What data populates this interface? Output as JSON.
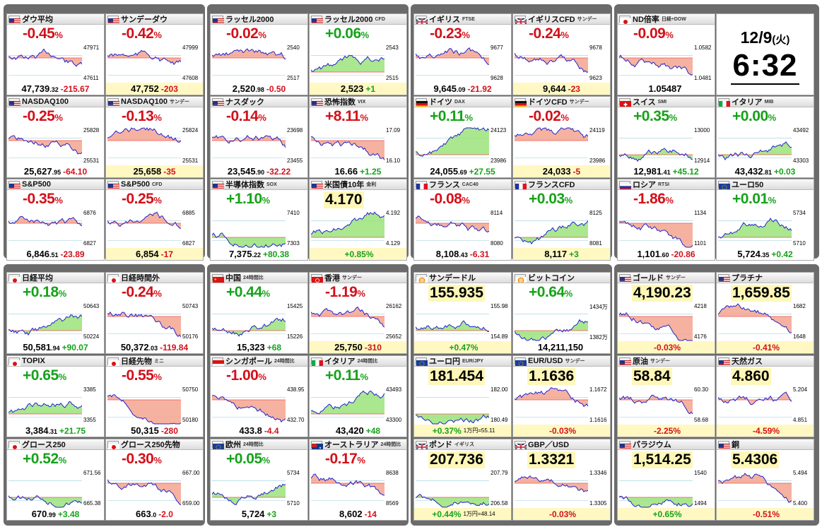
{
  "colors": {
    "up": "#16a21a",
    "down": "#d3101a",
    "line": "#2222cc",
    "fill_up": "#9be37a",
    "fill_down": "#f5a58f"
  },
  "clock": {
    "date": "12/9",
    "weekday": "(火)",
    "time": "6:32"
  },
  "cards": [
    {
      "name": "ダウ平均",
      "sub": "",
      "flag": "us",
      "change": "-0.45",
      "dir": "dn",
      "labels": [
        "47971",
        "47611"
      ],
      "foot": {
        "price": "47,739",
        "dec": ".32",
        "delta": "-215.67",
        "yellow": false
      }
    },
    {
      "name": "サンデーダウ",
      "sub": "",
      "flag": "us",
      "change": "-0.42",
      "dir": "dn",
      "labels": [
        "47999",
        "47608"
      ],
      "foot": {
        "price": "47,752",
        "dec": "",
        "delta": "-203",
        "yellow": true
      }
    },
    {
      "name": "ラッセル2000",
      "sub": "",
      "flag": "us",
      "change": "-0.02",
      "dir": "dn",
      "labels": [
        "2540",
        "2517"
      ],
      "foot": {
        "price": "2,520",
        "dec": ".98",
        "delta": "-0.50",
        "yellow": false
      }
    },
    {
      "name": "ラッセル2000",
      "sub": "CFD",
      "flag": "us",
      "change": "+0.06",
      "dir": "up",
      "labels": [
        "2543",
        "2515"
      ],
      "foot": {
        "price": "2,523",
        "dec": "",
        "delta": "+1",
        "yellow": true
      }
    },
    {
      "name": "イギリス",
      "sub": "FTSE",
      "flag": "uk",
      "change": "-0.23",
      "dir": "dn",
      "labels": [
        "9677",
        "9628"
      ],
      "foot": {
        "price": "9,645",
        "dec": ".09",
        "delta": "-21.92",
        "yellow": false
      }
    },
    {
      "name": "イギリスCFD",
      "sub": "サンデー",
      "flag": "uk",
      "change": "-0.24",
      "dir": "dn",
      "labels": [
        "9678",
        "9623"
      ],
      "foot": {
        "price": "9,644",
        "dec": "",
        "delta": "-23",
        "yellow": true
      }
    },
    {
      "name": "ND倍率",
      "sub": "日経÷DOW",
      "flag": "jp",
      "change": "-0.09",
      "dir": "dn",
      "labels": [
        "1.0582",
        "1.0481"
      ],
      "foot": {
        "price": "1.05487",
        "dec": "",
        "delta": "",
        "yellow": false
      }
    },
    null,
    {
      "name": "NASDAQ100",
      "sub": "",
      "flag": "us",
      "change": "-0.25",
      "dir": "dn",
      "labels": [
        "25828",
        "25531"
      ],
      "foot": {
        "price": "25,627",
        "dec": ".95",
        "delta": "-64.10",
        "yellow": false
      }
    },
    {
      "name": "NASDAQ100",
      "sub": "サンデー",
      "flag": "us",
      "change": "-0.13",
      "dir": "dn",
      "labels": [
        "25824",
        "25531"
      ],
      "foot": {
        "price": "25,658",
        "dec": "",
        "delta": "-35",
        "yellow": true
      }
    },
    {
      "name": "ナスダック",
      "sub": "",
      "flag": "us",
      "change": "-0.14",
      "dir": "dn",
      "labels": [
        "23698",
        "23455"
      ],
      "foot": {
        "price": "23,545",
        "dec": ".90",
        "delta": "-32.22",
        "yellow": false
      }
    },
    {
      "name": "恐怖指数",
      "sub": "VIX",
      "flag": "us",
      "change": "+8.11",
      "dir": "dn",
      "labels": [
        "17.09",
        "16.10"
      ],
      "foot": {
        "price": "16.66",
        "dec": "",
        "delta": "+1.25",
        "yellow": false
      }
    },
    {
      "name": "ドイツ",
      "sub": "DAX",
      "flag": "de",
      "change": "+0.11",
      "dir": "up",
      "labels": [
        "24123",
        "23986"
      ],
      "foot": {
        "price": "24,055",
        "dec": ".69",
        "delta": "+27.55",
        "yellow": false
      }
    },
    {
      "name": "ドイツCFD",
      "sub": "サンデー",
      "flag": "de",
      "change": "-0.02",
      "dir": "dn",
      "labels": [
        "24119",
        "23986"
      ],
      "foot": {
        "price": "24,033",
        "dec": "",
        "delta": "-5",
        "yellow": true
      }
    },
    {
      "name": "スイス",
      "sub": "SMI",
      "flag": "ch",
      "change": "+0.35",
      "dir": "up",
      "labels": [
        "13000",
        "12914"
      ],
      "foot": {
        "price": "12,981",
        "dec": ".41",
        "delta": "+45.12",
        "yellow": false
      }
    },
    {
      "name": "イタリア",
      "sub": "MIB",
      "flag": "it",
      "change": "+0.00",
      "dir": "up",
      "labels": [
        "43492",
        "43303"
      ],
      "foot": {
        "price": "43,432",
        "dec": ".81",
        "delta": "+0.03",
        "yellow": false
      }
    },
    {
      "name": "S&P500",
      "sub": "",
      "flag": "us",
      "change": "-0.35",
      "dir": "dn",
      "labels": [
        "6876",
        "6827"
      ],
      "foot": {
        "price": "6,846",
        "dec": ".51",
        "delta": "-23.89",
        "yellow": false
      }
    },
    {
      "name": "S&P500",
      "sub": "CFD",
      "flag": "us",
      "change": "-0.25",
      "dir": "dn",
      "labels": [
        "6885",
        "6827"
      ],
      "foot": {
        "price": "6,854",
        "dec": "",
        "delta": "-17",
        "yellow": true
      }
    },
    {
      "name": "半導体指数",
      "sub": "SOX",
      "flag": "us",
      "change": "+1.10",
      "dir": "up",
      "labels": [
        "7410",
        "7303"
      ],
      "foot": {
        "price": "7,375",
        "dec": ".22",
        "delta": "+80.38",
        "yellow": false
      }
    },
    {
      "name": "米国債10年",
      "sub": "金利",
      "flag": "us",
      "change": "4.170",
      "dir": "price",
      "labels": [
        "4.192",
        "4.129"
      ],
      "foot": {
        "price": "",
        "dec": "",
        "delta": "+0.85%",
        "yellow": true
      }
    },
    {
      "name": "フランス",
      "sub": "CAC40",
      "flag": "fr",
      "change": "-0.08",
      "dir": "dn",
      "labels": [
        "8114",
        "8080"
      ],
      "foot": {
        "price": "8,108",
        "dec": ".43",
        "delta": "-6.31",
        "yellow": false
      }
    },
    {
      "name": "フランスCFD",
      "sub": "",
      "flag": "fr",
      "change": "+0.03",
      "dir": "up",
      "labels": [
        "8125",
        "8081"
      ],
      "foot": {
        "price": "8,117",
        "dec": "",
        "delta": "+3",
        "yellow": true
      }
    },
    {
      "name": "ロシア",
      "sub": "RTSI",
      "flag": "ru",
      "change": "-1.86",
      "dir": "dn",
      "labels": [
        "1134",
        "1101"
      ],
      "foot": {
        "price": "1,101",
        "dec": ".60",
        "delta": "-20.86",
        "yellow": false
      }
    },
    {
      "name": "ユーロ50",
      "sub": "",
      "flag": "eu",
      "change": "+0.01",
      "dir": "up",
      "labels": [
        "5734",
        "5710"
      ],
      "foot": {
        "price": "5,724",
        "dec": ".35",
        "delta": "+0.42",
        "yellow": false
      }
    },
    {
      "name": "日経平均",
      "sub": "",
      "flag": "jp",
      "change": "+0.18",
      "dir": "up",
      "labels": [
        "50643",
        "50224"
      ],
      "foot": {
        "price": "50,581",
        "dec": ".94",
        "delta": "+90.07",
        "yellow": false
      }
    },
    {
      "name": "日経時間外",
      "sub": "",
      "flag": "jp",
      "change": "-0.24",
      "dir": "dn",
      "labels": [
        "50743",
        "50176"
      ],
      "foot": {
        "price": "50,372",
        "dec": ".03",
        "delta": "-119.84",
        "yellow": false
      }
    },
    {
      "name": "中国",
      "sub": "24時間比",
      "flag": "cn",
      "change": "+0.44",
      "dir": "up",
      "labels": [
        "15425",
        "15226"
      ],
      "foot": {
        "price": "15,323",
        "dec": "",
        "delta": "+68",
        "yellow": false
      }
    },
    {
      "name": "香港",
      "sub": "サンデー",
      "flag": "hk",
      "change": "-1.19",
      "dir": "dn",
      "labels": [
        "26162",
        "25652"
      ],
      "foot": {
        "price": "25,750",
        "dec": "",
        "delta": "-310",
        "yellow": true
      }
    },
    {
      "name": "サンデードル",
      "sub": "",
      "flag": "btc",
      "change": "155.935",
      "dir": "price",
      "labels": [
        "155.98",
        "154.89"
      ],
      "foot": {
        "price": "",
        "dec": "",
        "delta": "+0.47%",
        "yellow": true
      }
    },
    {
      "name": "ビットコイン",
      "sub": "",
      "flag": "btc",
      "change": "+0.64",
      "dir": "up",
      "labels": [
        "1434万",
        "1382万"
      ],
      "foot": {
        "price": "14,211,150",
        "dec": "",
        "delta": "",
        "yellow": false
      }
    },
    {
      "name": "ゴールド",
      "sub": "サンデー",
      "flag": "us",
      "change": "4,190.23",
      "dir": "price",
      "labels": [
        "4218",
        "4176"
      ],
      "foot": {
        "price": "",
        "dec": "",
        "delta": "-0.03%",
        "yellow": true
      }
    },
    {
      "name": "プラチナ",
      "sub": "",
      "flag": "us",
      "change": "1,659.85",
      "dir": "price",
      "labels": [
        "1682",
        "1648"
      ],
      "foot": {
        "price": "",
        "dec": "",
        "delta": "-0.41%",
        "yellow": true
      }
    },
    {
      "name": "TOPIX",
      "sub": "",
      "flag": "jp",
      "change": "+0.65",
      "dir": "up",
      "labels": [
        "3385",
        "3355"
      ],
      "foot": {
        "price": "3,384",
        "dec": ".31",
        "delta": "+21.75",
        "yellow": false
      }
    },
    {
      "name": "日経先物",
      "sub": "ミニ",
      "flag": "jp",
      "change": "-0.55",
      "dir": "dn",
      "labels": [
        "50750",
        "50180"
      ],
      "foot": {
        "price": "50,315",
        "dec": "",
        "delta": "-280",
        "yellow": false
      }
    },
    {
      "name": "シンガポール",
      "sub": "24時間比",
      "flag": "sg",
      "change": "-1.00",
      "dir": "dn",
      "labels": [
        "438.95",
        "432.70"
      ],
      "foot": {
        "price": "433.8",
        "dec": "",
        "delta": "-4.4",
        "yellow": false
      }
    },
    {
      "name": "イタリア",
      "sub": "24時間比",
      "flag": "it",
      "change": "+0.11",
      "dir": "up",
      "labels": [
        "43493",
        "43300"
      ],
      "foot": {
        "price": "43,420",
        "dec": "",
        "delta": "+48",
        "yellow": false
      }
    },
    {
      "name": "ユーロ円",
      "sub": "EUR/JPY",
      "flag": "eu",
      "change": "181.454",
      "dir": "price",
      "labels": [
        "182.00",
        "180.49"
      ],
      "foot": {
        "price": "",
        "dec": "",
        "delta": "+0.37%",
        "note": "1万円=55.11",
        "yellow": true
      }
    },
    {
      "name": "EUR/USD",
      "sub": "サンデー",
      "flag": "eu",
      "change": "1.1636",
      "dir": "price",
      "labels": [
        "1.1672",
        "1.1616"
      ],
      "foot": {
        "price": "",
        "dec": "",
        "delta": "-0.03%",
        "yellow": true
      }
    },
    {
      "name": "原油",
      "sub": "サンデー",
      "flag": "us",
      "change": "58.84",
      "dir": "price",
      "labels": [
        "60.30",
        "58.68"
      ],
      "foot": {
        "price": "",
        "dec": "",
        "delta": "-2.25%",
        "yellow": true
      }
    },
    {
      "name": "天然ガス",
      "sub": "",
      "flag": "us",
      "change": "4.860",
      "dir": "price",
      "labels": [
        "5.204",
        "4.851"
      ],
      "foot": {
        "price": "",
        "dec": "",
        "delta": "-4.59%",
        "yellow": true
      }
    },
    {
      "name": "グロース250",
      "sub": "",
      "flag": "jp",
      "change": "+0.52",
      "dir": "up",
      "labels": [
        "671.56",
        "665.38"
      ],
      "foot": {
        "price": "670",
        "dec": ".99",
        "delta": "+3.48",
        "yellow": false
      }
    },
    {
      "name": "グロース250先物",
      "sub": "",
      "flag": "jp",
      "change": "-0.30",
      "dir": "dn",
      "labels": [
        "667.00",
        "659.00"
      ],
      "foot": {
        "price": "663",
        "dec": ".0",
        "delta": "-2.0",
        "yellow": false
      }
    },
    {
      "name": "欧州",
      "sub": "24時間比",
      "flag": "eu",
      "change": "+0.05",
      "dir": "up",
      "labels": [
        "5734",
        "5710"
      ],
      "foot": {
        "price": "5,724",
        "dec": "",
        "delta": "+3",
        "yellow": false
      }
    },
    {
      "name": "オーストラリア",
      "sub": "24時間比",
      "flag": "au",
      "change": "-0.17",
      "dir": "dn",
      "labels": [
        "8638",
        "8569"
      ],
      "foot": {
        "price": "8,602",
        "dec": "",
        "delta": "-14",
        "yellow": false
      }
    },
    {
      "name": "ポンド",
      "sub": "イギリス",
      "flag": "uk",
      "change": "207.736",
      "dir": "price",
      "labels": [
        "207.79",
        "206.58"
      ],
      "foot": {
        "price": "",
        "dec": "",
        "delta": "+0.44%",
        "note": "1万円=48.14",
        "yellow": true
      }
    },
    {
      "name": "GBP／USD",
      "sub": "",
      "flag": "uk",
      "change": "1.3321",
      "dir": "price",
      "labels": [
        "1.3346",
        "1.3305"
      ],
      "foot": {
        "price": "",
        "dec": "",
        "delta": "-0.03%",
        "yellow": true
      }
    },
    {
      "name": "パラジウム",
      "sub": "",
      "flag": "us",
      "change": "1,514.25",
      "dir": "price",
      "labels": [
        "1540",
        "1494"
      ],
      "foot": {
        "price": "",
        "dec": "",
        "delta": "+0.65%",
        "yellow": true
      }
    },
    {
      "name": "銅",
      "sub": "",
      "flag": "us",
      "change": "5.4306",
      "dir": "price",
      "labels": [
        "5.494",
        "5.400"
      ],
      "foot": {
        "price": "",
        "dec": "",
        "delta": "-0.51%",
        "yellow": true
      }
    }
  ]
}
